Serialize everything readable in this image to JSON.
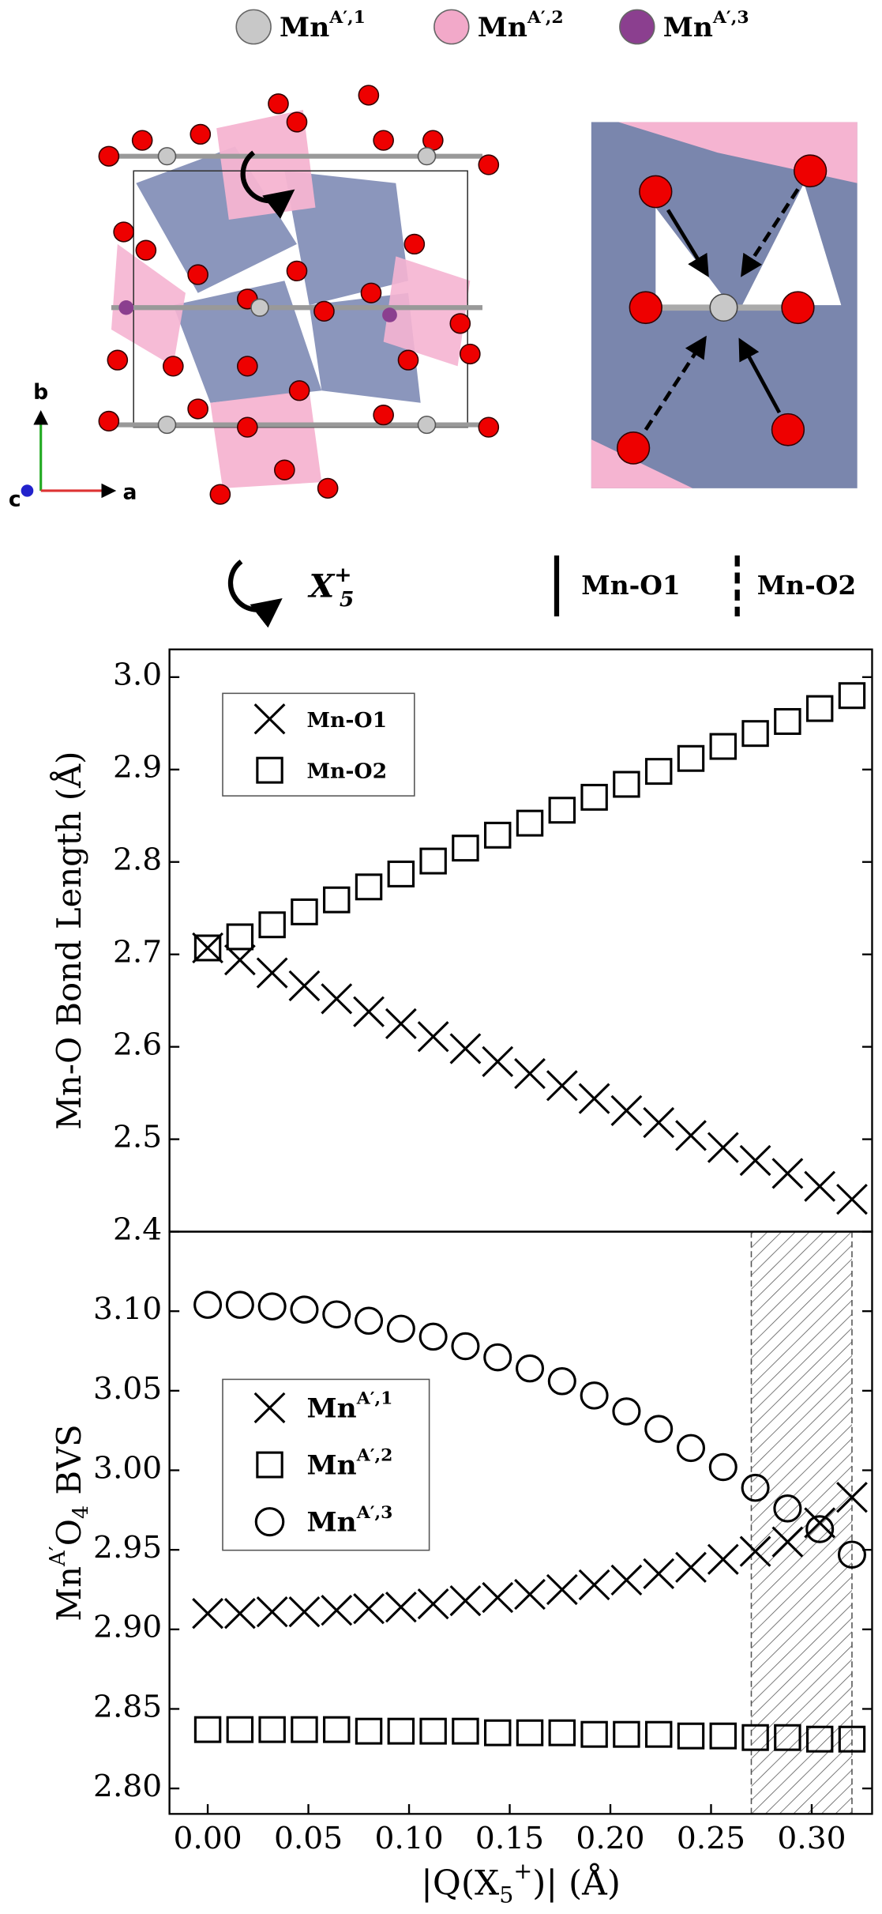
{
  "structure": {
    "legend": [
      {
        "base": "Mn",
        "sup": "A′,1",
        "color": "#c8c8c8"
      },
      {
        "base": "Mn",
        "sup": "A′,2",
        "color": "#f2a9c9"
      },
      {
        "base": "Mn",
        "sup": "A′,3",
        "color": "#8b3f8f"
      }
    ],
    "axes": [
      "b",
      "c",
      "a"
    ],
    "rotation_label": {
      "base": "X",
      "sub": "5",
      "sup": "+"
    },
    "bond_labels": [
      "Mn-O1",
      "Mn-O2"
    ]
  },
  "chart_data": [
    {
      "type": "scatter",
      "ylabel": [
        {
          "text": "Mn-O Bond Length (Å)"
        }
      ],
      "xlim": [
        -0.019,
        0.33
      ],
      "ylim": [
        2.4,
        3.03
      ],
      "yticks": [
        2.4,
        2.5,
        2.6,
        2.7,
        2.8,
        2.9,
        {
          "value": 3.0,
          "label": "3.0"
        }
      ],
      "x": [
        0,
        0.016,
        0.032,
        0.048,
        0.064,
        0.08,
        0.096,
        0.112,
        0.128,
        0.144,
        0.16,
        0.176,
        0.192,
        0.208,
        0.224,
        0.24,
        0.256,
        0.272,
        0.288,
        0.304,
        0.32
      ],
      "series": [
        {
          "name": "Mn-O1",
          "marker": "x",
          "color": "#000000",
          "values": [
            2.707,
            2.694,
            2.68,
            2.666,
            2.652,
            2.638,
            2.625,
            2.611,
            2.598,
            2.584,
            2.571,
            2.558,
            2.544,
            2.531,
            2.518,
            2.504,
            2.491,
            2.477,
            2.463,
            2.449,
            2.435
          ]
        },
        {
          "name": "Mn-O2",
          "marker": "square",
          "color": "#000000",
          "values": [
            2.707,
            2.719,
            2.732,
            2.746,
            2.759,
            2.773,
            2.787,
            2.801,
            2.815,
            2.829,
            2.842,
            2.856,
            2.87,
            2.884,
            2.898,
            2.912,
            2.925,
            2.939,
            2.952,
            2.966,
            2.98
          ]
        }
      ]
    },
    {
      "type": "scatter",
      "ylabel": [
        {
          "text": "Mn"
        },
        {
          "text": "A′",
          "sup": true
        },
        {
          "text": "O"
        },
        {
          "text": "4",
          "sub": true
        },
        {
          "text": " BVS"
        }
      ],
      "xlabel": [
        {
          "text": "|Q(X"
        },
        {
          "text": "5",
          "sub": true
        },
        {
          "text": "+",
          "sup": true
        },
        {
          "text": ")| (Å)"
        }
      ],
      "xlim": [
        -0.019,
        0.33
      ],
      "ylim": [
        2.784,
        3.15
      ],
      "xticks": [
        {
          "value": 0,
          "label": "0.00"
        },
        0.05,
        {
          "value": 0.1,
          "label": "0.10"
        },
        0.15,
        {
          "value": 0.2,
          "label": "0.20"
        },
        0.25,
        {
          "value": 0.3,
          "label": "0.30"
        }
      ],
      "yticks": [
        {
          "value": 2.8,
          "label": "2.80"
        },
        2.85,
        {
          "value": 2.9,
          "label": "2.90"
        },
        2.95,
        {
          "value": 3.0,
          "label": "3.00"
        },
        3.05,
        {
          "value": 3.1,
          "label": "3.10"
        }
      ],
      "shaded_region": [
        0.27,
        0.32
      ],
      "x": [
        0,
        0.016,
        0.032,
        0.048,
        0.064,
        0.08,
        0.096,
        0.112,
        0.128,
        0.144,
        0.16,
        0.176,
        0.192,
        0.208,
        0.224,
        0.24,
        0.256,
        0.272,
        0.288,
        0.304,
        0.32
      ],
      "series": [
        {
          "name": "Mn",
          "name_sup": "A′,1",
          "marker": "x",
          "color": "#000000",
          "values": [
            2.91,
            2.91,
            2.911,
            2.911,
            2.912,
            2.913,
            2.914,
            2.916,
            2.918,
            2.92,
            2.922,
            2.925,
            2.928,
            2.931,
            2.935,
            2.939,
            2.944,
            2.949,
            2.955,
            2.967,
            2.983
          ]
        },
        {
          "name": "Mn",
          "name_sup": "A′,2",
          "marker": "square",
          "color": "#000000",
          "values": [
            2.837,
            2.837,
            2.837,
            2.837,
            2.837,
            2.836,
            2.836,
            2.836,
            2.836,
            2.835,
            2.835,
            2.835,
            2.834,
            2.834,
            2.834,
            2.833,
            2.833,
            2.832,
            2.832,
            2.831,
            2.831
          ]
        },
        {
          "name": "Mn",
          "name_sup": "A′,3",
          "marker": "circle",
          "color": "#000000",
          "values": [
            3.104,
            3.104,
            3.103,
            3.101,
            3.098,
            3.094,
            3.089,
            3.084,
            3.078,
            3.071,
            3.064,
            3.056,
            3.047,
            3.037,
            3.026,
            3.014,
            3.002,
            2.989,
            2.976,
            2.963,
            2.947
          ]
        }
      ]
    }
  ]
}
